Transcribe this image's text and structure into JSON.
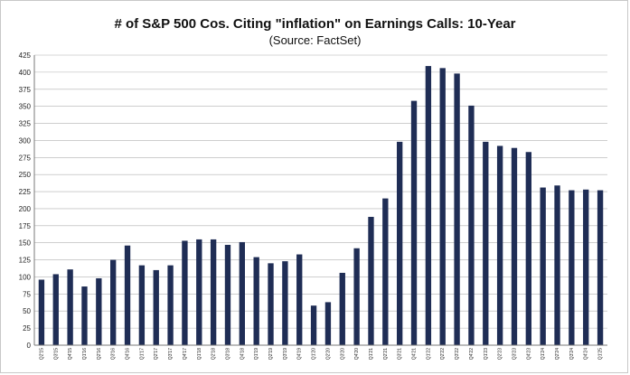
{
  "chart_data": {
    "type": "bar",
    "title": "# of S&P 500 Cos. Citing \"inflation\" on Earnings Calls: 10-Year",
    "subtitle": "(Source: FactSet)",
    "xlabel": "",
    "ylabel": "",
    "ylim": [
      0,
      425
    ],
    "ytick_step": 25,
    "grid": true,
    "bar_color": "#1f2d55",
    "categories": [
      "Q2'15",
      "Q3'15",
      "Q4'15",
      "Q1'16",
      "Q2'16",
      "Q3'16",
      "Q4'16",
      "Q1'17",
      "Q2'17",
      "Q3'17",
      "Q4'17",
      "Q1'18",
      "Q2'18",
      "Q3'18",
      "Q4'18",
      "Q1'19",
      "Q2'19",
      "Q3'19",
      "Q4'19",
      "Q1'20",
      "Q2'20",
      "Q3'20",
      "Q4'20",
      "Q1'21",
      "Q2'21",
      "Q3'21",
      "Q4'21",
      "Q1'22",
      "Q2'22",
      "Q3'22",
      "Q4'22",
      "Q1'23",
      "Q2'23",
      "Q3'23",
      "Q4'23",
      "Q1'24",
      "Q2'24",
      "Q3'24",
      "Q4'24",
      "Q1'25"
    ],
    "tick_labels": [
      "Q2'15",
      "Q3'15",
      "Q4'15",
      "Q1'16",
      "Q2'16",
      "Q3'16",
      "Q4'16",
      "Q1'17",
      "Q2'17",
      "Q3'17",
      "Q4'17",
      "Q1'18",
      "Q2'18",
      "Q3'18",
      "Q4'18",
      "Q1'19",
      "Q2'19",
      "Q3'19",
      "Q4'19",
      "Q1'20",
      "Q2'20",
      "Q3'20",
      "Q4'20",
      "Q1'21",
      "Q2'21",
      "Q3'21",
      "Q4'21",
      "Q1'22",
      "Q2'22",
      "Q3'22",
      "Q4'22",
      "Q1'23",
      "Q2'23",
      "Q3'23",
      "Q4'23",
      "Q1'24",
      "Q2'24",
      "Q3'24",
      "Q4'24",
      "Q1'25"
    ],
    "values": [
      96,
      104,
      111,
      86,
      98,
      125,
      146,
      117,
      110,
      117,
      153,
      155,
      155,
      147,
      151,
      129,
      120,
      123,
      133,
      58,
      63,
      106,
      142,
      188,
      215,
      298,
      358,
      409,
      406,
      398,
      351,
      298,
      292,
      289,
      283,
      231,
      234,
      227,
      228,
      227
    ]
  }
}
